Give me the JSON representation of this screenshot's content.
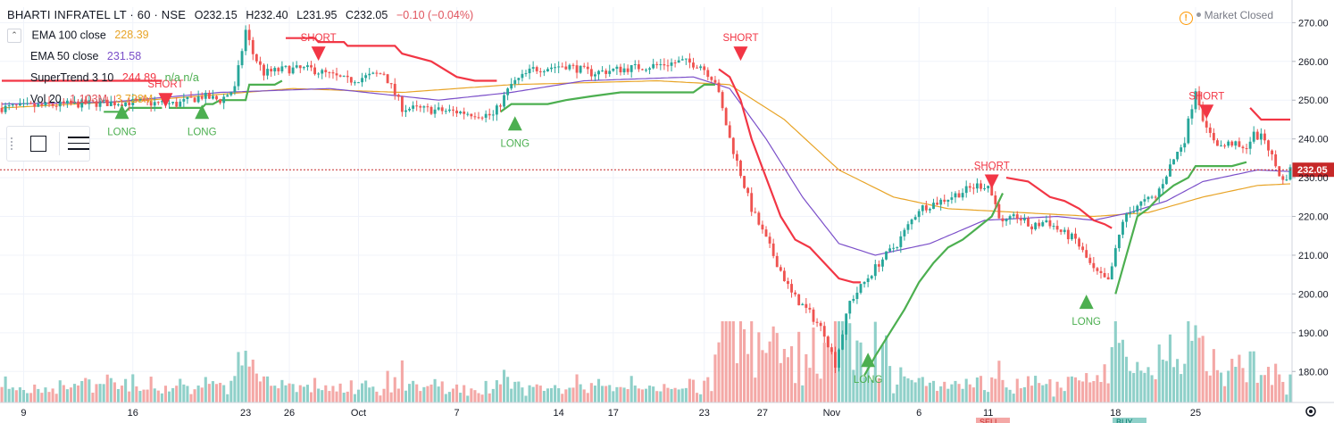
{
  "header": {
    "symbol": "BHARTI INFRATEL LT · 60 · NSE",
    "open": "O232.15",
    "high": "H232.40",
    "low": "L231.95",
    "close": "C232.05",
    "change": "−0.10 (−0.04%)"
  },
  "status": {
    "label": "Market Closed",
    "icon": "warning-icon"
  },
  "indicators": [
    {
      "name": "EMA 100 close",
      "value": "228.39",
      "color": "#e8a427"
    },
    {
      "name": "EMA 50 close",
      "value": "231.58",
      "color": "#7b4fc9"
    },
    {
      "name": "SuperTrend 3 10",
      "value": "244.89",
      "extra": "n/a  n/a",
      "color": "#f23645"
    },
    {
      "name": "Vol 20",
      "value": "1.103M",
      "extra": "3.728M",
      "color": "#e0545e"
    }
  ],
  "toolbox": {
    "icons": [
      "rectangle-icon",
      "lines-icon"
    ]
  },
  "chart_data": {
    "type": "candlestick",
    "title": "BHARTI INFRATEL LT · 60 · NSE",
    "last_price": "232.05",
    "ylim": [
      172,
      274
    ],
    "y_ticks": [
      180,
      190,
      200,
      210,
      220,
      230,
      240,
      250,
      260,
      270
    ],
    "y_tick_labels": [
      "180.00",
      "190.00",
      "200.00",
      "210.00",
      "220.00",
      "230.00",
      "240.00",
      "250.00",
      "260.00",
      "270.00"
    ],
    "x_tick_labels": [
      "9",
      "16",
      "23",
      "26",
      "Oct",
      "7",
      "14",
      "17",
      "23",
      "27",
      "Nov",
      "6",
      "11",
      "18",
      "25"
    ],
    "n_bars": 355,
    "x_tick_positions": [
      6,
      36,
      67,
      79,
      98,
      125,
      153,
      168,
      193,
      209,
      228,
      252,
      271,
      306,
      328
    ],
    "price_anchors": [
      [
        0,
        248
      ],
      [
        20,
        249
      ],
      [
        35,
        249.5
      ],
      [
        48,
        249
      ],
      [
        55,
        251
      ],
      [
        60,
        250
      ],
      [
        64,
        253
      ],
      [
        67,
        268
      ],
      [
        69,
        262
      ],
      [
        72,
        257
      ],
      [
        78,
        258
      ],
      [
        85,
        258
      ],
      [
        95,
        255
      ],
      [
        105,
        257
      ],
      [
        110,
        248
      ],
      [
        125,
        247
      ],
      [
        135,
        246
      ],
      [
        140,
        254
      ],
      [
        146,
        258
      ],
      [
        155,
        259
      ],
      [
        162,
        257
      ],
      [
        170,
        258
      ],
      [
        180,
        259
      ],
      [
        187,
        260
      ],
      [
        192,
        259
      ],
      [
        196,
        255
      ],
      [
        200,
        240
      ],
      [
        206,
        222
      ],
      [
        212,
        210
      ],
      [
        217,
        200
      ],
      [
        222,
        195
      ],
      [
        226,
        190
      ],
      [
        229,
        182
      ],
      [
        233,
        198
      ],
      [
        237,
        203
      ],
      [
        241,
        208
      ],
      [
        246,
        213
      ],
      [
        252,
        222
      ],
      [
        258,
        224
      ],
      [
        263,
        226
      ],
      [
        268,
        228
      ],
      [
        271,
        228
      ],
      [
        275,
        218
      ],
      [
        279,
        220
      ],
      [
        283,
        217
      ],
      [
        287,
        219
      ],
      [
        291,
        216
      ],
      [
        295,
        214
      ],
      [
        300,
        206
      ],
      [
        304,
        203
      ],
      [
        308,
        219
      ],
      [
        312,
        223
      ],
      [
        317,
        225
      ],
      [
        321,
        233
      ],
      [
        325,
        240
      ],
      [
        328,
        253
      ],
      [
        331,
        242
      ],
      [
        335,
        238
      ],
      [
        338,
        239
      ],
      [
        341,
        237
      ],
      [
        344,
        241
      ],
      [
        347,
        240
      ],
      [
        350,
        233
      ],
      [
        352,
        229
      ],
      [
        354,
        232
      ]
    ],
    "ema50_anchors": [
      [
        0,
        249
      ],
      [
        30,
        249.5
      ],
      [
        60,
        252
      ],
      [
        90,
        253
      ],
      [
        120,
        250
      ],
      [
        140,
        252
      ],
      [
        160,
        255
      ],
      [
        190,
        256
      ],
      [
        200,
        253
      ],
      [
        210,
        240
      ],
      [
        220,
        225
      ],
      [
        230,
        213
      ],
      [
        240,
        210
      ],
      [
        255,
        213
      ],
      [
        270,
        219
      ],
      [
        290,
        220
      ],
      [
        300,
        219
      ],
      [
        310,
        221
      ],
      [
        320,
        224
      ],
      [
        330,
        229
      ],
      [
        345,
        232
      ],
      [
        354,
        231.6
      ]
    ],
    "ema100_anchors": [
      [
        0,
        248
      ],
      [
        40,
        250
      ],
      [
        80,
        253
      ],
      [
        110,
        252
      ],
      [
        140,
        254
      ],
      [
        180,
        255
      ],
      [
        200,
        254
      ],
      [
        215,
        245
      ],
      [
        230,
        232
      ],
      [
        245,
        225
      ],
      [
        260,
        222
      ],
      [
        280,
        221
      ],
      [
        300,
        220
      ],
      [
        315,
        221
      ],
      [
        330,
        225
      ],
      [
        345,
        228
      ],
      [
        354,
        228.4
      ]
    ],
    "supertrend_segments": [
      {
        "trend": "down",
        "points": [
          [
            0,
            255
          ],
          [
            26,
            255
          ],
          [
            29,
            255
          ],
          [
            44,
            255
          ]
        ]
      },
      {
        "trend": "up",
        "points": [
          [
            28,
            247
          ],
          [
            34,
            247
          ],
          [
            35,
            248
          ],
          [
            44,
            248
          ]
        ]
      },
      {
        "trend": "up",
        "points": [
          [
            46,
            248
          ],
          [
            55,
            248
          ],
          [
            56,
            249
          ],
          [
            58,
            249
          ],
          [
            60,
            250
          ],
          [
            67,
            250
          ],
          [
            68,
            254
          ],
          [
            75,
            254
          ],
          [
            77,
            255
          ]
        ]
      },
      {
        "trend": "down",
        "points": [
          [
            78,
            266
          ],
          [
            80,
            266
          ],
          [
            86,
            266
          ],
          [
            87,
            265
          ],
          [
            94,
            265
          ],
          [
            95,
            264
          ],
          [
            108,
            264
          ],
          [
            110,
            262
          ],
          [
            118,
            260
          ],
          [
            125,
            256
          ],
          [
            130,
            255
          ],
          [
            136,
            255
          ]
        ]
      },
      {
        "trend": "up",
        "points": [
          [
            137,
            247
          ],
          [
            140,
            249
          ],
          [
            150,
            249
          ],
          [
            155,
            250
          ],
          [
            162,
            251
          ],
          [
            170,
            252
          ],
          [
            180,
            252
          ],
          [
            190,
            252
          ],
          [
            193,
            254
          ],
          [
            196,
            254
          ]
        ]
      },
      {
        "trend": "down",
        "points": [
          [
            197,
            258
          ],
          [
            200,
            256
          ],
          [
            203,
            250
          ],
          [
            206,
            240
          ],
          [
            210,
            230
          ],
          [
            214,
            220
          ],
          [
            218,
            214
          ],
          [
            222,
            212
          ],
          [
            226,
            208
          ],
          [
            230,
            204
          ],
          [
            234,
            203
          ],
          [
            236,
            203
          ]
        ]
      },
      {
        "trend": "up",
        "points": [
          [
            237,
            179
          ],
          [
            240,
            184
          ],
          [
            244,
            190
          ],
          [
            248,
            196
          ],
          [
            252,
            203
          ],
          [
            256,
            208
          ],
          [
            260,
            212
          ],
          [
            264,
            214
          ],
          [
            268,
            217
          ],
          [
            272,
            220
          ],
          [
            275,
            226
          ]
        ]
      },
      {
        "trend": "down",
        "points": [
          [
            276,
            230
          ],
          [
            282,
            229
          ],
          [
            288,
            225
          ],
          [
            292,
            224
          ],
          [
            296,
            222
          ],
          [
            300,
            219
          ],
          [
            303,
            218
          ],
          [
            305,
            217
          ]
        ]
      },
      {
        "trend": "up",
        "points": [
          [
            306,
            200
          ],
          [
            309,
            210
          ],
          [
            312,
            220
          ],
          [
            315,
            222
          ],
          [
            318,
            225
          ],
          [
            322,
            228
          ],
          [
            326,
            230
          ],
          [
            328,
            233
          ],
          [
            332,
            233
          ],
          [
            338,
            233
          ],
          [
            342,
            234
          ]
        ]
      },
      {
        "trend": "down",
        "points": [
          [
            343,
            248
          ],
          [
            346,
            245
          ],
          [
            354,
            245
          ]
        ]
      }
    ],
    "signals": [
      {
        "type": "LONG",
        "bar": 33,
        "price": 247
      },
      {
        "type": "SHORT",
        "bar": 45,
        "price": 250
      },
      {
        "type": "LONG",
        "bar": 55,
        "price": 247
      },
      {
        "type": "SHORT",
        "bar": 87,
        "price": 262
      },
      {
        "type": "LONG",
        "bar": 141,
        "price": 244
      },
      {
        "type": "SHORT",
        "bar": 203,
        "price": 262
      },
      {
        "type": "LONG",
        "bar": 238,
        "price": 183
      },
      {
        "type": "SHORT",
        "bar": 272,
        "price": 229
      },
      {
        "type": "LONG",
        "bar": 298,
        "price": 198
      },
      {
        "type": "SHORT",
        "bar": 331,
        "price": 247
      }
    ],
    "volume_scale_max": 4.0,
    "volume_bottom_labels": [
      "SELL",
      "BUY"
    ],
    "colors": {
      "up": "#26a69a",
      "down": "#ef5350",
      "up_vol": "#8fd0c9",
      "down_vol": "#f4a8a6",
      "ema50": "#7b4fc9",
      "ema100": "#e8a427",
      "st_up": "#4caf50",
      "st_down": "#f23645",
      "last_price": "#c62828"
    }
  }
}
